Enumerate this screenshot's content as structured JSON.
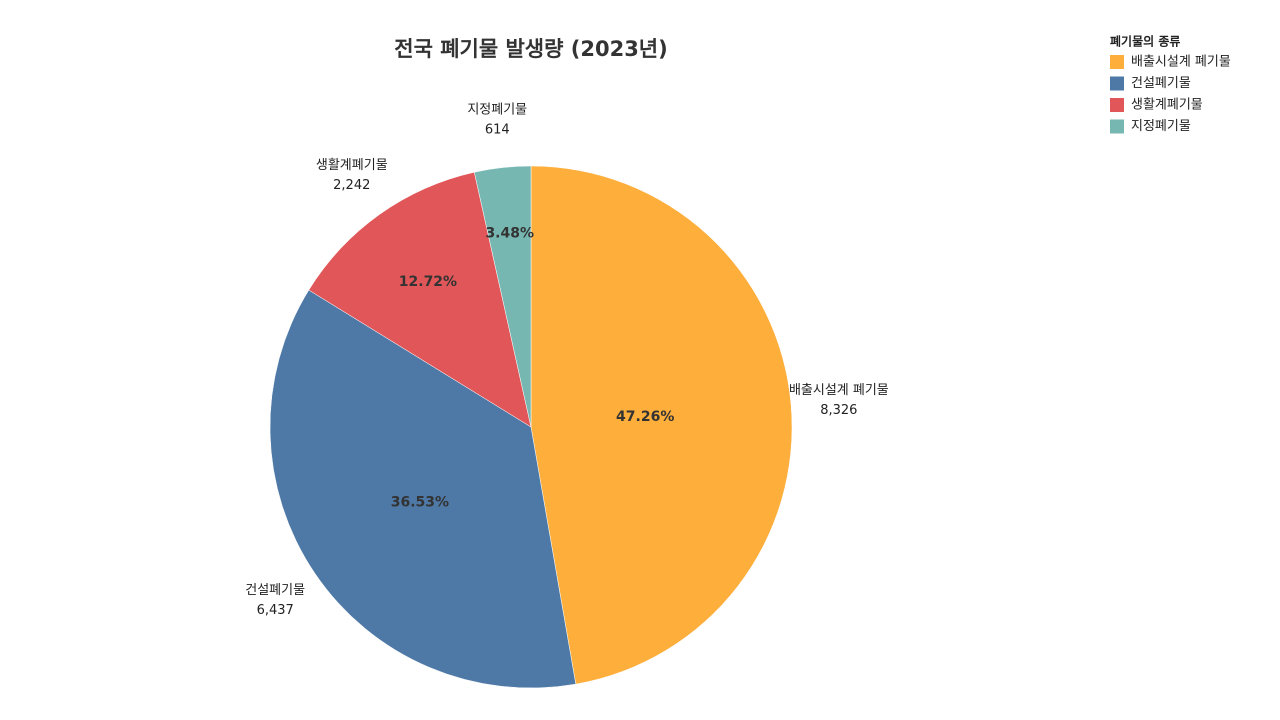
{
  "chart_data": {
    "type": "pie",
    "title": "전국 폐기물 발생량 (2023년)",
    "legend_title": "폐기물의 종류",
    "legend_position": "top-right",
    "categories": [
      "배출시설계 폐기물",
      "건설폐기물",
      "생활계폐기물",
      "지정폐기물"
    ],
    "values": [
      8326,
      6437,
      2242,
      614
    ],
    "value_labels": [
      "8,326",
      "6,437",
      "2,242",
      "614"
    ],
    "percent_labels": [
      "47.26%",
      "36.53%",
      "12.72%",
      "3.48%"
    ],
    "colors": [
      "#fdae3b",
      "#4e79a7",
      "#e15759",
      "#76b7b2"
    ]
  }
}
